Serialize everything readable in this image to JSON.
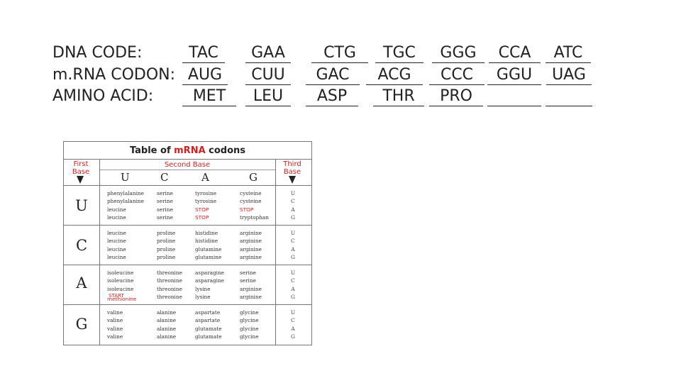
{
  "worksheet": {
    "rows": [
      {
        "label": "DNA CODE:",
        "cells": [
          "TAC",
          "GAA",
          "CTG",
          "TGC",
          "GGG",
          "CCA",
          "ATC"
        ]
      },
      {
        "label": "m.RNA CODON:",
        "cells": [
          "AUG",
          "CUU",
          "GAC",
          "ACG",
          "CCC",
          "GGU",
          "UAG"
        ]
      },
      {
        "label": "AMINO ACID:",
        "cells": [
          "MET",
          "LEU",
          "ASP",
          "THR",
          "PRO",
          "",
          ""
        ]
      }
    ]
  },
  "codon_table": {
    "title_prefix": "Table of ",
    "title_highlight": "mRNA",
    "title_suffix": " codons",
    "first_base_label": "First Base",
    "second_base_label": "Second Base",
    "third_base_label": "Third Base",
    "second_bases": [
      "U",
      "C",
      "A",
      "G"
    ],
    "blocks": [
      {
        "first": "U",
        "columns": [
          [
            "phenylalanine",
            "phenylalanine",
            "leucine",
            "leucine"
          ],
          [
            "serine",
            "serine",
            "serine",
            "serine"
          ],
          [
            "tyrosine",
            "tyrosine",
            "STOP",
            "STOP"
          ],
          [
            "cysteine",
            "cysteine",
            "STOP",
            "tryptophan"
          ]
        ],
        "third": [
          "U",
          "C",
          "A",
          "G"
        ]
      },
      {
        "first": "C",
        "columns": [
          [
            "leucine",
            "leucine",
            "leucine",
            "leucine"
          ],
          [
            "proline",
            "proline",
            "proline",
            "proline"
          ],
          [
            "histidine",
            "histidine",
            "glutamine",
            "glutamine"
          ],
          [
            "arginine",
            "arginine",
            "arginine",
            "arginine"
          ]
        ],
        "third": [
          "U",
          "C",
          "A",
          "G"
        ]
      },
      {
        "first": "A",
        "columns": [
          [
            "isoleucine",
            "isoleucine",
            "isoleucine",
            "methionine"
          ],
          [
            "threonine",
            "threonine",
            "threonine",
            "threonine"
          ],
          [
            "asparagine",
            "asparagine",
            "lysine",
            "lysine"
          ],
          [
            "serine",
            "serine",
            "arginine",
            "arginine"
          ]
        ],
        "third": [
          "U",
          "C",
          "A",
          "G"
        ],
        "start_label": "START"
      },
      {
        "first": "G",
        "columns": [
          [
            "valine",
            "valine",
            "valine",
            "valine"
          ],
          [
            "alanine",
            "alanine",
            "alanine",
            "alanine"
          ],
          [
            "aspartate",
            "aspartate",
            "glutamate",
            "glutamate"
          ],
          [
            "glycine",
            "glycine",
            "glycine",
            "glycine"
          ]
        ],
        "third": [
          "U",
          "C",
          "A",
          "G"
        ]
      }
    ],
    "colors": {
      "accent": "#d21f1f",
      "text": "#222222",
      "border": "#777777"
    }
  }
}
